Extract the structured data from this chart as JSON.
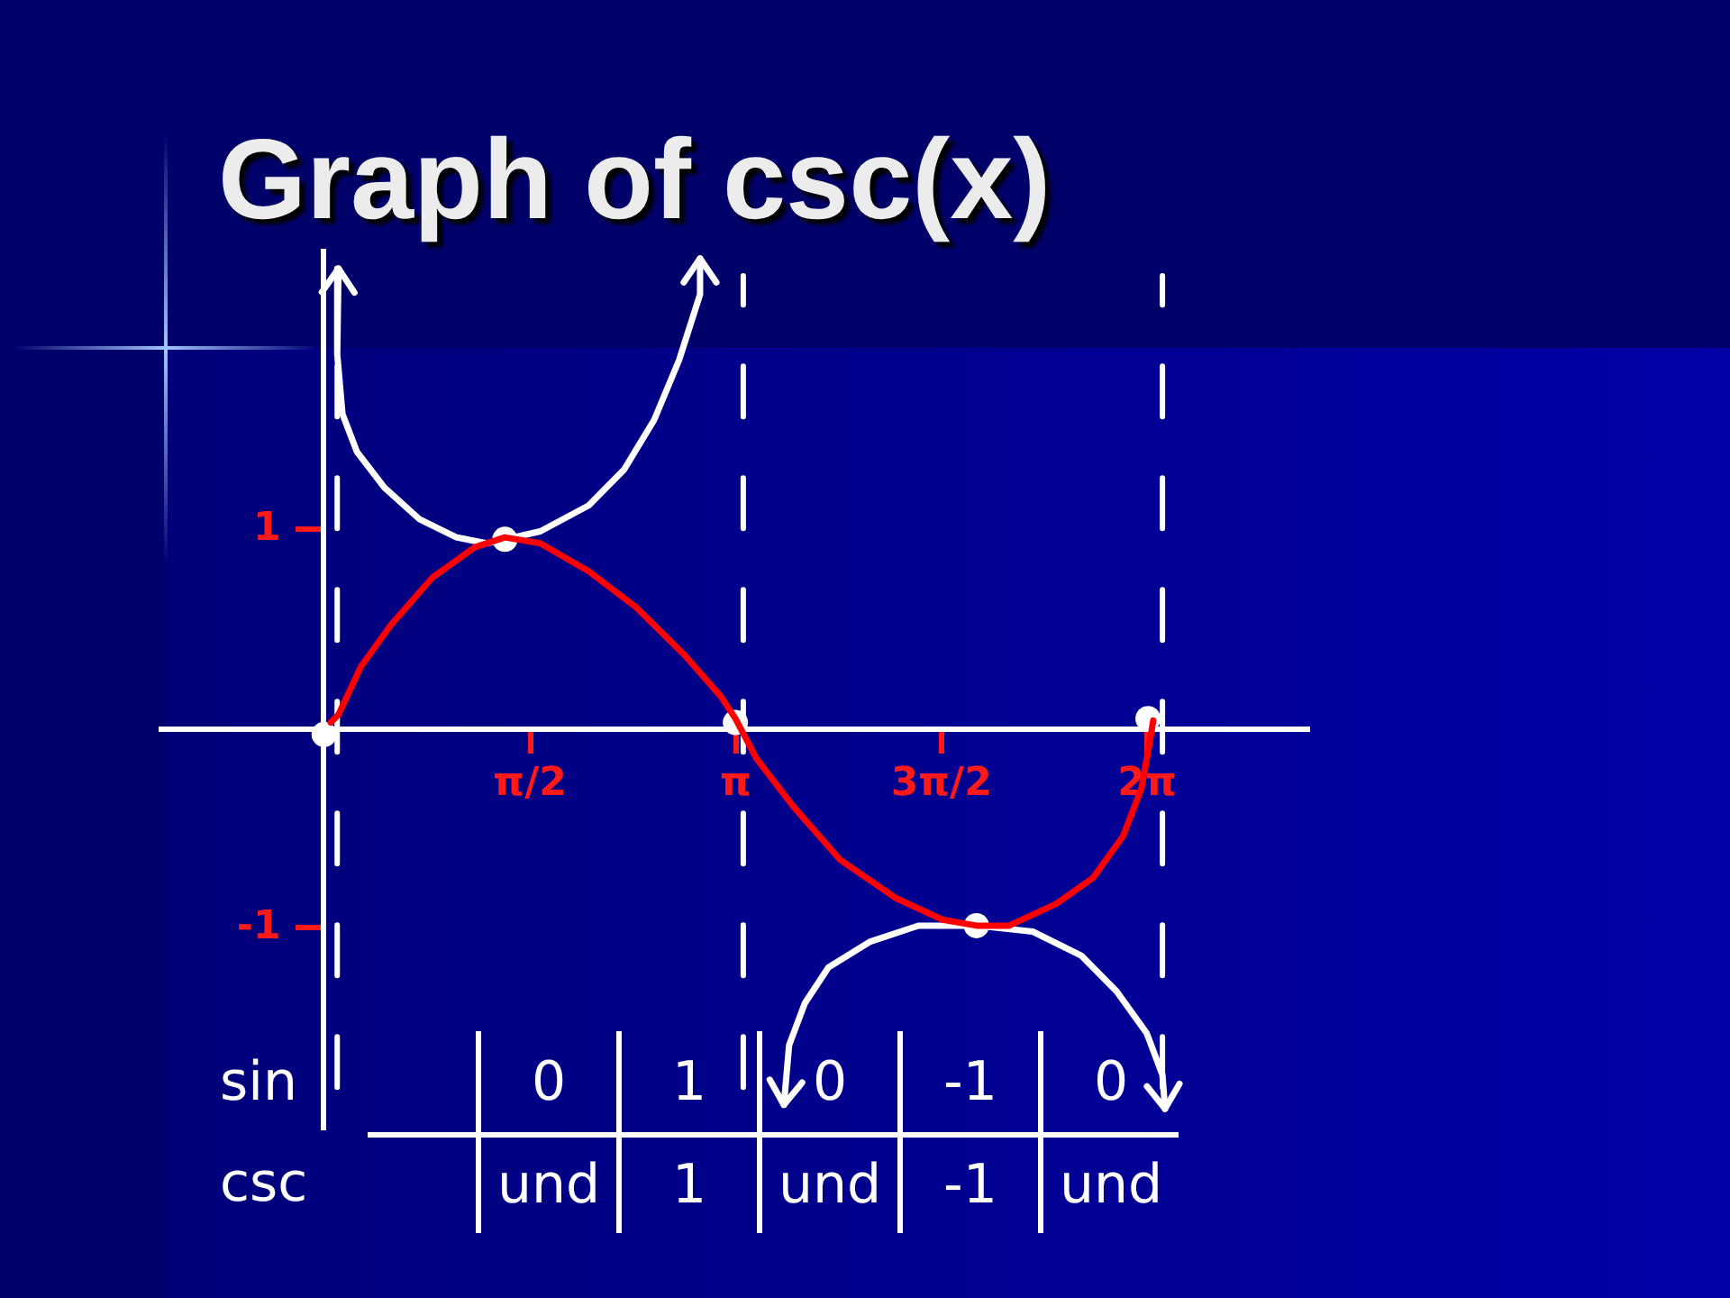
{
  "chart_data": {
    "type": "line",
    "title": "Graph of csc(x)",
    "xlim": [
      -1.25,
      7.5
    ],
    "ylim": [
      -2,
      2.4
    ],
    "xticks": [
      {
        "value": 1.571,
        "label": "π/2"
      },
      {
        "value": 3.142,
        "label": "π"
      },
      {
        "value": 4.712,
        "label": "3π/2"
      },
      {
        "value": 6.283,
        "label": "2π"
      }
    ],
    "yticks": [
      -1,
      1
    ],
    "series": [
      {
        "color": "#ff0000",
        "x": [
          0.05,
          0.11,
          0.28,
          0.51,
          0.83,
          1.15,
          1.38,
          1.65,
          2.02,
          2.38,
          2.75,
          3.03,
          3.14,
          3.3,
          3.58,
          3.94,
          4.36,
          4.72,
          4.98,
          5.23,
          5.59,
          5.87,
          6.1,
          6.24,
          6.3,
          6.33
        ],
        "values": [
          0.03,
          0.07,
          0.31,
          0.52,
          0.76,
          0.91,
          0.96,
          0.93,
          0.79,
          0.61,
          0.37,
          0.16,
          0.05,
          -0.15,
          -0.39,
          -0.66,
          -0.85,
          -0.96,
          -0.99,
          -0.99,
          -0.88,
          -0.75,
          -0.54,
          -0.3,
          -0.08,
          0.04
        ]
      },
      {
        "color": "#ffffff",
        "x": [
          0.11,
          0.1,
          0.14,
          0.25,
          0.46,
          0.73,
          1.01,
          1.24,
          1.38,
          1.65,
          2.02,
          2.29,
          2.52,
          2.71,
          2.87,
          2.87
        ],
        "values": [
          2.31,
          1.88,
          1.58,
          1.39,
          1.21,
          1.05,
          0.96,
          0.93,
          0.95,
          0.99,
          1.12,
          1.3,
          1.55,
          1.85,
          2.18,
          2.36
        ]
      },
      {
        "color": "#ffffff",
        "x": [
          3.51,
          3.55,
          3.67,
          3.85,
          4.17,
          4.54,
          4.98,
          5.41,
          5.78,
          6.05,
          6.28,
          6.4,
          6.42
        ],
        "values": [
          -1.89,
          -1.59,
          -1.38,
          -1.2,
          -1.07,
          -0.99,
          -0.99,
          -1.02,
          -1.14,
          -1.32,
          -1.53,
          -1.74,
          -1.91
        ]
      },
      {
        "type": "scatter",
        "marker": "circle",
        "color": "#ffffff",
        "x": [
          0,
          1.38,
          3.14,
          4.98,
          6.29
        ],
        "values": [
          -0.03,
          0.95,
          0.03,
          -0.99,
          0.05
        ]
      }
    ],
    "ref_lines": [
      {
        "axis": "x",
        "value": 0.1,
        "color": "#ffffff",
        "line_style": "dashed"
      },
      {
        "axis": "x",
        "value": 3.2,
        "color": "#ffffff",
        "line_style": "dashed"
      },
      {
        "axis": "x",
        "value": 6.4,
        "color": "#ffffff",
        "line_style": "dashed"
      }
    ],
    "annotations": [
      "sin",
      "0",
      "1",
      "0",
      "-1",
      "0",
      "csc",
      "und",
      "1",
      "und",
      "-1",
      "und"
    ]
  }
}
